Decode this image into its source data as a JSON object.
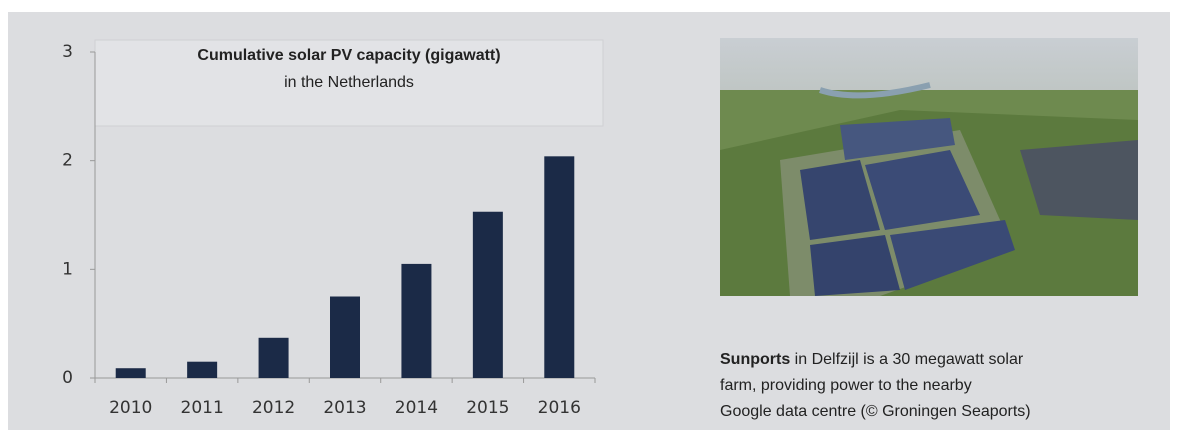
{
  "chart_data": {
    "type": "bar",
    "title": "Cumulative solar PV capacity (gigawatt)",
    "subtitle": "in the Netherlands",
    "categories": [
      "2010",
      "2011",
      "2012",
      "2013",
      "2014",
      "2015",
      "2016"
    ],
    "values": [
      0.09,
      0.15,
      0.37,
      0.75,
      1.05,
      1.53,
      2.04
    ],
    "color": "#1b2a47",
    "ylim": [
      0,
      3
    ],
    "yticks": [
      0,
      1,
      2,
      3
    ],
    "grid": false
  },
  "caption": {
    "bold": "Sunports",
    "line1": " in Delfzijl is a 30 megawatt solar",
    "line2": "farm, providing power to the nearby",
    "line3": "Google data centre (© Groningen Seaports)"
  }
}
